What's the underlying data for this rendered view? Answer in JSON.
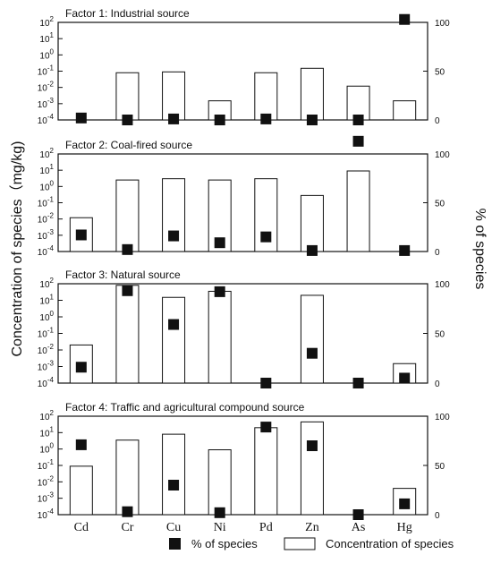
{
  "chart_data": {
    "type": "bar",
    "categories": [
      "Cd",
      "Cr",
      "Cu",
      "Ni",
      "Pd",
      "Zn",
      "As",
      "Hg"
    ],
    "left_axis_label": "Concentration of species（mg/kg)",
    "right_axis_label": "% of species",
    "left_scale": "log",
    "left_ylim_exponents": [
      -4,
      2
    ],
    "right_ylim": [
      0,
      100
    ],
    "right_ticks": [
      "0",
      "50",
      "100"
    ],
    "legend": {
      "placement": "bottom",
      "marker_label": "% of species",
      "bar_label": "Concentration of species"
    },
    "marker_color": "#111111",
    "panels": [
      {
        "title": "Factor 1: Industrial source",
        "concentration": [
          null,
          0.08,
          0.09,
          0.0015,
          0.08,
          0.15,
          0.012,
          0.0015
        ],
        "percent": [
          2,
          0,
          1,
          0,
          1,
          0,
          0,
          103
        ]
      },
      {
        "title": "Factor 2: Coal-fired source",
        "concentration": [
          0.012,
          2.5,
          3.0,
          2.5,
          3.0,
          0.28,
          9.0,
          null
        ],
        "percent": [
          17,
          2,
          16,
          9,
          15,
          1,
          113,
          1
        ]
      },
      {
        "title": "Factor 3: Natural source",
        "concentration": [
          0.02,
          80,
          15,
          35,
          null,
          20,
          null,
          0.0015
        ],
        "percent": [
          16,
          93,
          59,
          92,
          0,
          30,
          0,
          5
        ]
      },
      {
        "title": "Factor 4: Traffic and agricultural  compound source",
        "concentration": [
          0.09,
          3.5,
          8.0,
          0.9,
          20,
          45,
          null,
          0.004
        ],
        "percent": [
          71,
          3,
          30,
          2,
          89,
          70,
          0,
          11
        ]
      }
    ]
  }
}
